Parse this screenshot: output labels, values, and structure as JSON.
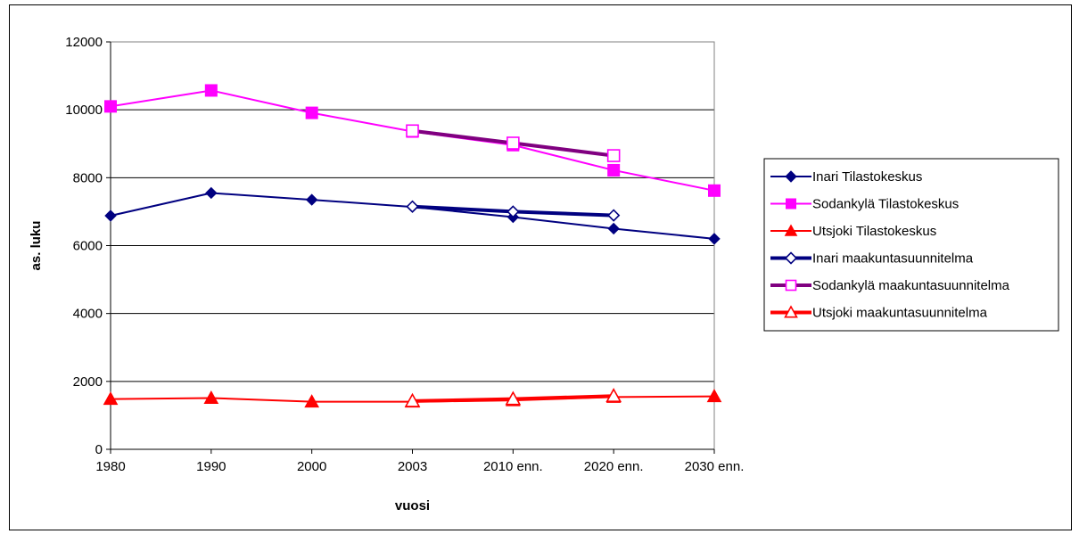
{
  "chart_data": {
    "type": "line",
    "title": "",
    "xlabel": "vuosi",
    "ylabel": "as. luku",
    "ylim": [
      0,
      12000
    ],
    "yticks": [
      0,
      2000,
      4000,
      6000,
      8000,
      10000,
      12000
    ],
    "grid": true,
    "legend_position": "right",
    "categories": [
      "1980",
      "1990",
      "2000",
      "2003",
      "2010 enn.",
      "2020 enn.",
      "2030 enn."
    ],
    "series": [
      {
        "name": "Inari Tilastokeskus",
        "color": "#000080",
        "marker": "diamond",
        "marker_fill": "filled",
        "line_width": 2,
        "values": [
          6880,
          7550,
          7350,
          7140,
          6840,
          6500,
          6200
        ]
      },
      {
        "name": "Sodankylä Tilastokeskus",
        "color": "#FF00FF",
        "marker": "square",
        "marker_fill": "filled",
        "line_width": 2,
        "values": [
          10100,
          10570,
          9910,
          9360,
          8960,
          8220,
          7620
        ]
      },
      {
        "name": "Utsjoki Tilastokeskus",
        "color": "#FF0000",
        "marker": "triangle",
        "marker_fill": "filled",
        "line_width": 2,
        "values": [
          1480,
          1510,
          1400,
          1400,
          1440,
          1540,
          1560
        ]
      },
      {
        "name": "Inari maakuntasuunnitelma",
        "color": "#000080",
        "marker": "diamond",
        "marker_fill": "open",
        "line_width": 4,
        "values": [
          null,
          null,
          null,
          7150,
          7000,
          6890,
          null
        ]
      },
      {
        "name": "Sodankylä maakuntasuunnitelma",
        "color": "#800080",
        "marker": "square",
        "marker_fill": "open",
        "marker_color": "#FF00FF",
        "line_width": 4,
        "values": [
          null,
          null,
          null,
          9380,
          9020,
          8650,
          null
        ]
      },
      {
        "name": "Utsjoki maakuntasuunnitelma",
        "color": "#FF0000",
        "marker": "triangle",
        "marker_fill": "open",
        "line_width": 4,
        "values": [
          null,
          null,
          null,
          1420,
          1480,
          1570,
          null
        ]
      }
    ]
  }
}
